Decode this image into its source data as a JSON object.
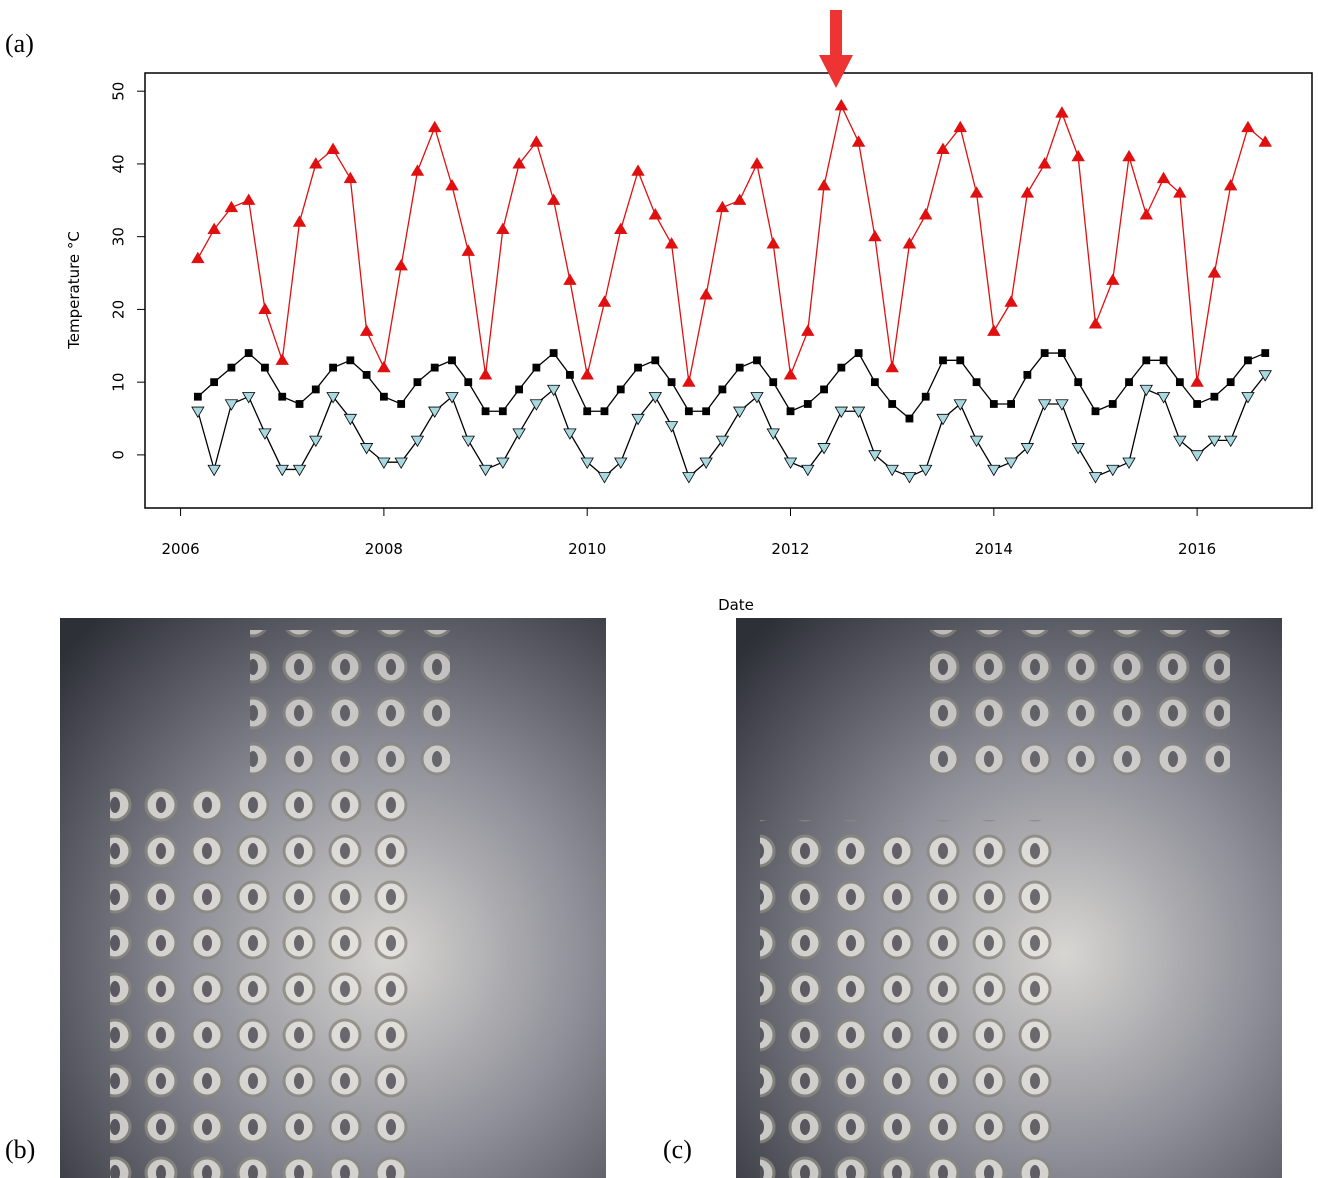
{
  "panel_labels": [
    "(a)",
    "(b)",
    "(c)"
  ],
  "chart_data": {
    "type": "line",
    "x_label": "Date",
    "y_label": "Temperature °C",
    "xlim": [
      2005.65,
      2017.13
    ],
    "ylim": [
      -7.3,
      52.5
    ],
    "xticks": [
      2006,
      2008,
      2010,
      2012,
      2014,
      2016
    ],
    "yticks": [
      0,
      10,
      20,
      30,
      40,
      50
    ],
    "x": [
      2006.17,
      2006.33,
      2006.5,
      2006.67,
      2006.83,
      2007.0,
      2007.17,
      2007.33,
      2007.5,
      2007.67,
      2007.83,
      2008.0,
      2008.17,
      2008.33,
      2008.5,
      2008.67,
      2008.83,
      2009.0,
      2009.17,
      2009.33,
      2009.5,
      2009.67,
      2009.83,
      2010.0,
      2010.17,
      2010.33,
      2010.5,
      2010.67,
      2010.83,
      2011.0,
      2011.17,
      2011.33,
      2011.5,
      2011.67,
      2011.83,
      2012.0,
      2012.17,
      2012.33,
      2012.5,
      2012.67,
      2012.83,
      2013.0,
      2013.17,
      2013.33,
      2013.5,
      2013.67,
      2013.83,
      2014.0,
      2014.17,
      2014.33,
      2014.5,
      2014.67,
      2014.83,
      2015.0,
      2015.17,
      2015.33,
      2015.5,
      2015.67,
      2015.83,
      2016.0,
      2016.17,
      2016.33,
      2016.5,
      2016.67
    ],
    "series": [
      {
        "color": "#e01010",
        "line_color": "#e01010",
        "marker": "triangle-up",
        "values": [
          27,
          31,
          34,
          35,
          20,
          13,
          32,
          40,
          42,
          38,
          17,
          12,
          26,
          39,
          45,
          37,
          28,
          11,
          31,
          40,
          43,
          35,
          24,
          11,
          21,
          31,
          39,
          33,
          29,
          10,
          22,
          34,
          35,
          40,
          29,
          11,
          17,
          37,
          48,
          43,
          30,
          12,
          29,
          33,
          42,
          45,
          36,
          17,
          21,
          36,
          40,
          47,
          41,
          18,
          24,
          41,
          33,
          38,
          36,
          10,
          25,
          37,
          45,
          43
        ]
      },
      {
        "color": "#000000",
        "line_color": "#000000",
        "marker": "square",
        "values": [
          8,
          10,
          12,
          14,
          12,
          8,
          7,
          9,
          12,
          13,
          11,
          8,
          7,
          10,
          12,
          13,
          10,
          6,
          6,
          9,
          12,
          14,
          11,
          6,
          6,
          9,
          12,
          13,
          10,
          6,
          6,
          9,
          12,
          13,
          10,
          6,
          7,
          9,
          12,
          14,
          10,
          7,
          5,
          8,
          13,
          13,
          10,
          7,
          7,
          11,
          14,
          14,
          10,
          6,
          7,
          10,
          13,
          13,
          10,
          7,
          8,
          10,
          13,
          14
        ]
      },
      {
        "color": "#a8d8e0",
        "line_color": "#000000",
        "marker": "triangle-down",
        "values": [
          6,
          -2,
          7,
          8,
          3,
          -2,
          -2,
          2,
          8,
          5,
          1,
          -1,
          -1,
          2,
          6,
          8,
          2,
          -2,
          -1,
          3,
          7,
          9,
          3,
          -1,
          -3,
          -1,
          5,
          8,
          4,
          -3,
          -1,
          2,
          6,
          8,
          3,
          -1,
          -2,
          1,
          6,
          6,
          0,
          -2,
          -3,
          -2,
          5,
          7,
          2,
          -2,
          -1,
          1,
          7,
          7,
          1,
          -3,
          -2,
          -1,
          9,
          8,
          2,
          0,
          2,
          2,
          8,
          11
        ]
      }
    ]
  }
}
